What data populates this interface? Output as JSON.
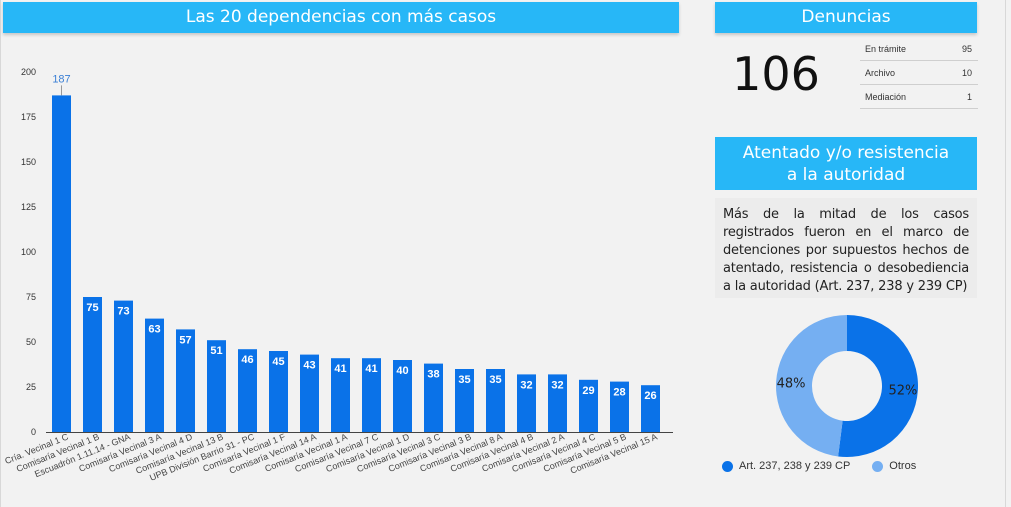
{
  "left_panel": {
    "title": "Las 20 dependencias con más casos"
  },
  "denuncias": {
    "title": "Denuncias",
    "total": "106",
    "rows": [
      {
        "label": "En trámite",
        "value": "95"
      },
      {
        "label": "Archivo",
        "value": "10"
      },
      {
        "label": "Mediación",
        "value": "1"
      }
    ]
  },
  "atentado": {
    "title_line1": "Atentado y/o resistencia",
    "title_line2": "a la autoridad",
    "description": "Más de la mitad de los casos registrados fueron en el marco de detenciones por supuestos hechos de atentado, resistencia o desobediencia a la autoridad (Art. 237, 238 y 239 CP)"
  },
  "colors": {
    "header": "#27b7f7",
    "bar": "#0a72e8",
    "donut_primary": "#0a72e8",
    "donut_secondary": "#75aff2"
  },
  "chart_data": [
    {
      "type": "bar",
      "title": "Las 20 dependencias con más casos",
      "xlabel": "",
      "ylabel": "",
      "ylim": [
        0,
        200
      ],
      "yticks": [
        0,
        25,
        50,
        75,
        100,
        125,
        150,
        175,
        200
      ],
      "grid": false,
      "categories": [
        "Cría. Vecinal 1 C",
        "Comisaría Vecinal 1 B",
        "Escuadrón 1.11.14 - GNA",
        "Comisaría Vecinal 3 A",
        "Comisaría Vecinal 4 D",
        "Comisaría Vecinal 13 B",
        "UPB División Barrio 31 - PC",
        "Comisaría Vecinal 1 F",
        "Comisaría Vecinal 14 A",
        "Comisaría Vecinal 1 A",
        "Comisaría Vecinal 7 C",
        "Comisaría Vecinal 1 D",
        "Comisaría Vecinal 3 C",
        "Comisaría Vecinal 3 B",
        "Comisaría Vecinal 8 A",
        "Comisaría Vecinal 4 B",
        "Comisaría Vecinal 2 A",
        "Comisaría Vecinal 4 C",
        "Comisaría Vecinal 5 B",
        "Comisaría Vecinal 15 A"
      ],
      "values": [
        187,
        75,
        73,
        63,
        57,
        51,
        46,
        45,
        43,
        41,
        41,
        40,
        38,
        35,
        35,
        32,
        32,
        29,
        28,
        26
      ]
    },
    {
      "type": "pie",
      "donut": true,
      "title": "Atentado y/o resistencia a la autoridad",
      "labels": [
        "Art. 237, 238 y 239 CP",
        "Otros"
      ],
      "values": [
        52,
        48
      ],
      "value_labels": [
        "52%",
        "48%"
      ],
      "legend": "bottom-left"
    }
  ]
}
